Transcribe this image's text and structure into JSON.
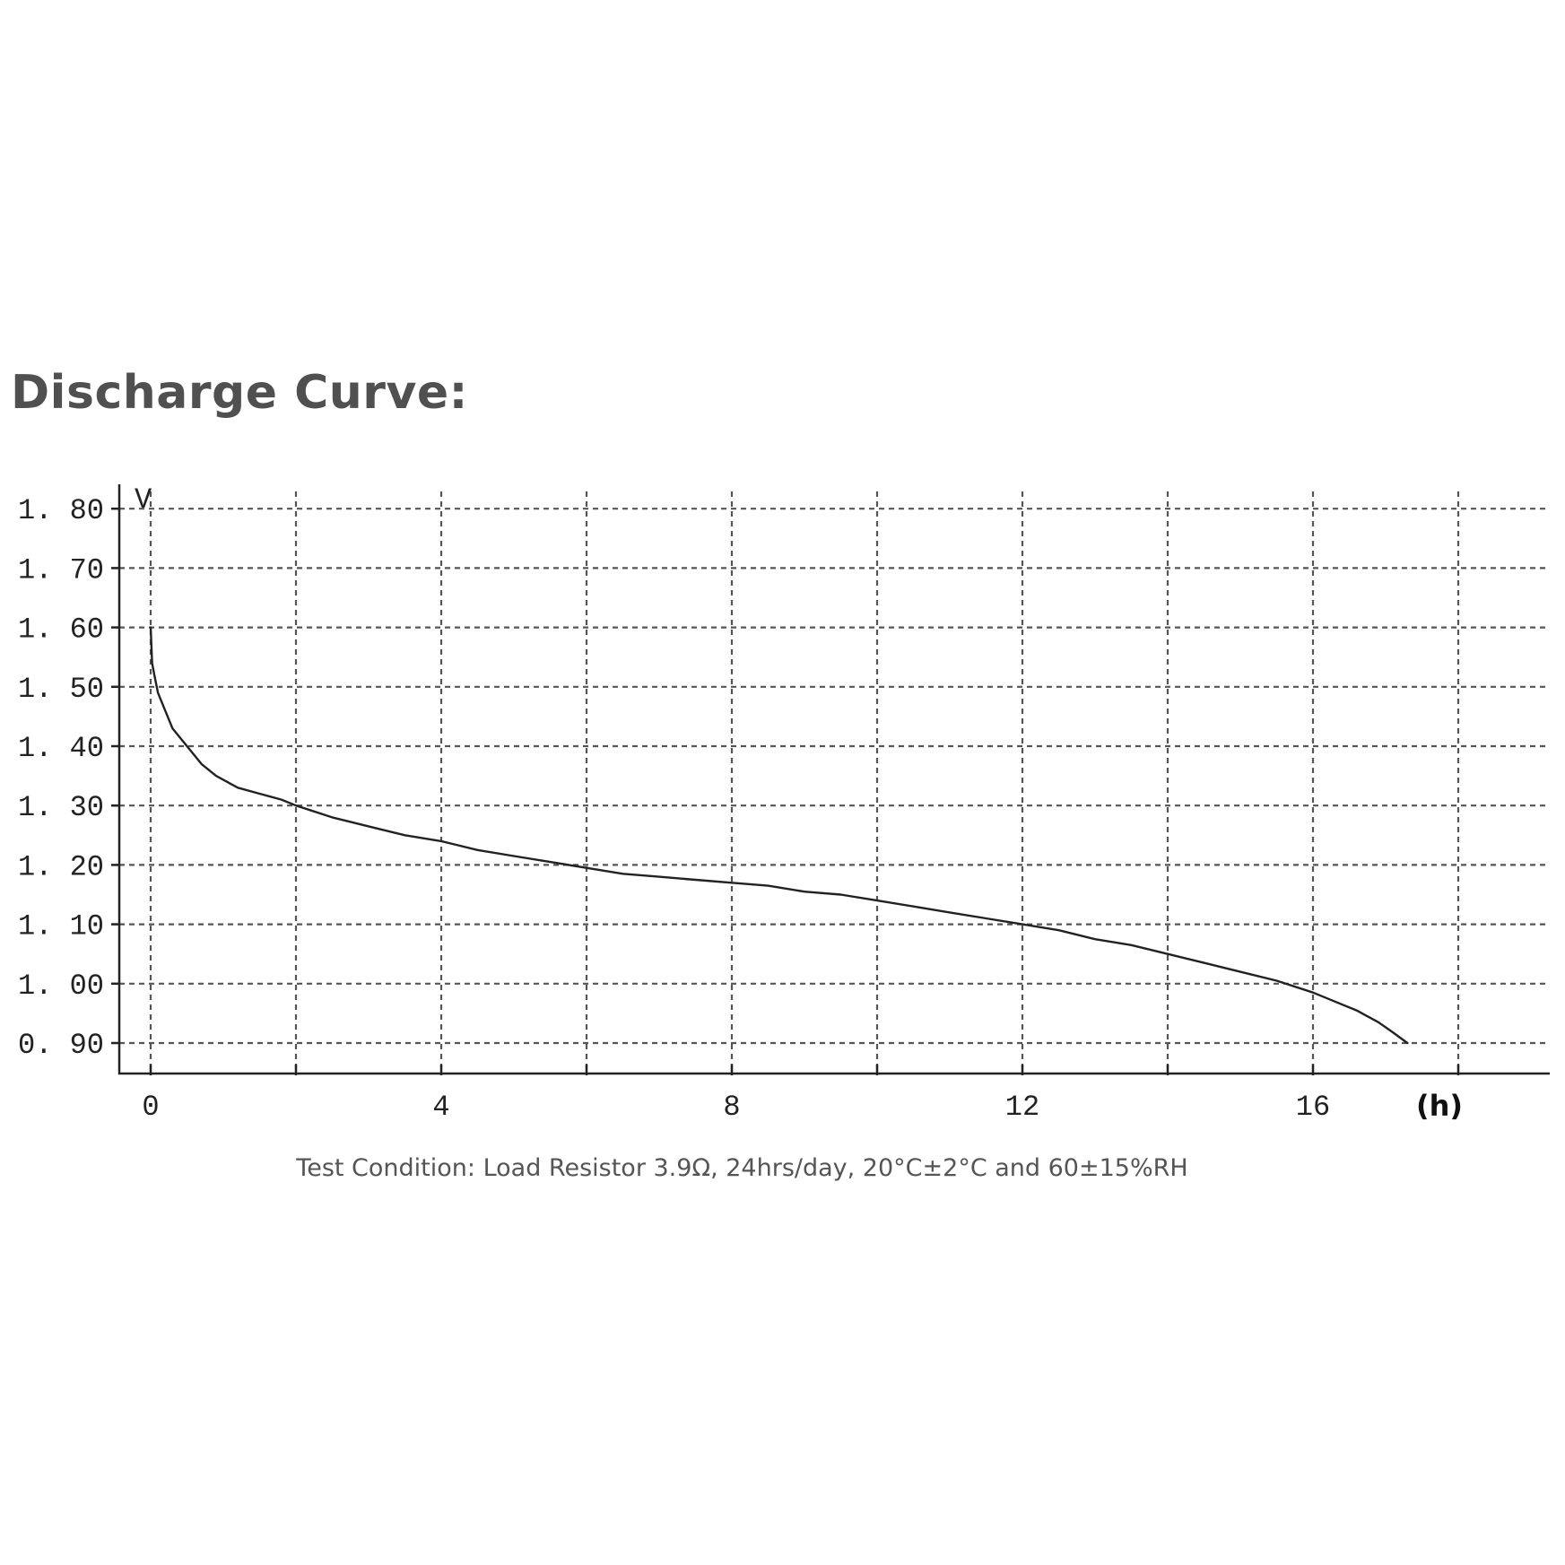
{
  "title": "Discharge Curve:",
  "caption": "Test Condition: Load Resistor 3.9Ω, 24hrs/day, 20°C±2°C and 60±15%RH",
  "colors": {
    "title": "#505050",
    "grid": "#555555",
    "curve": "#222222",
    "axis": "#222222",
    "caption": "#555555"
  },
  "chart_data": {
    "type": "line",
    "title": "Discharge Curve:",
    "xlabel": "(h)",
    "ylabel": "V",
    "xlim": [
      0,
      19.8
    ],
    "ylim": [
      0.85,
      1.82
    ],
    "x_ticks": [
      0,
      4,
      8,
      12,
      16
    ],
    "x_tick_labels": [
      "0",
      "4",
      "8",
      "12",
      "16"
    ],
    "x_grid": [
      0,
      2,
      4,
      6,
      8,
      10,
      12,
      14,
      16,
      18
    ],
    "y_ticks": [
      0.9,
      1.0,
      1.1,
      1.2,
      1.3,
      1.4,
      1.5,
      1.6,
      1.7,
      1.8
    ],
    "y_tick_labels": [
      "0. 90",
      "1. 00",
      "1. 10",
      "1. 20",
      "1. 30",
      "1. 40",
      "1. 50",
      "1. 60",
      "1. 70",
      "1. 80"
    ],
    "grid": true,
    "series": [
      {
        "x": [
          0,
          0.02,
          0.05,
          0.1,
          0.2,
          0.3,
          0.5,
          0.7,
          0.9,
          1.2,
          1.5,
          1.8,
          2.0,
          2.5,
          3.0,
          3.5,
          4.0,
          4.5,
          5.0,
          5.5,
          6.0,
          6.5,
          7.0,
          7.5,
          8.0,
          8.5,
          9.0,
          9.5,
          10.0,
          10.5,
          11.0,
          11.5,
          12.0,
          12.5,
          13.0,
          13.5,
          14.0,
          14.5,
          15.0,
          15.5,
          16.0,
          16.3,
          16.6,
          16.9,
          17.1,
          17.3
        ],
        "y": [
          1.6,
          1.54,
          1.52,
          1.49,
          1.46,
          1.43,
          1.4,
          1.37,
          1.35,
          1.33,
          1.32,
          1.31,
          1.3,
          1.28,
          1.265,
          1.25,
          1.24,
          1.225,
          1.215,
          1.205,
          1.195,
          1.185,
          1.18,
          1.175,
          1.17,
          1.165,
          1.155,
          1.15,
          1.14,
          1.13,
          1.12,
          1.11,
          1.1,
          1.09,
          1.075,
          1.065,
          1.05,
          1.035,
          1.02,
          1.005,
          0.985,
          0.97,
          0.955,
          0.935,
          0.918,
          0.9
        ]
      }
    ]
  }
}
